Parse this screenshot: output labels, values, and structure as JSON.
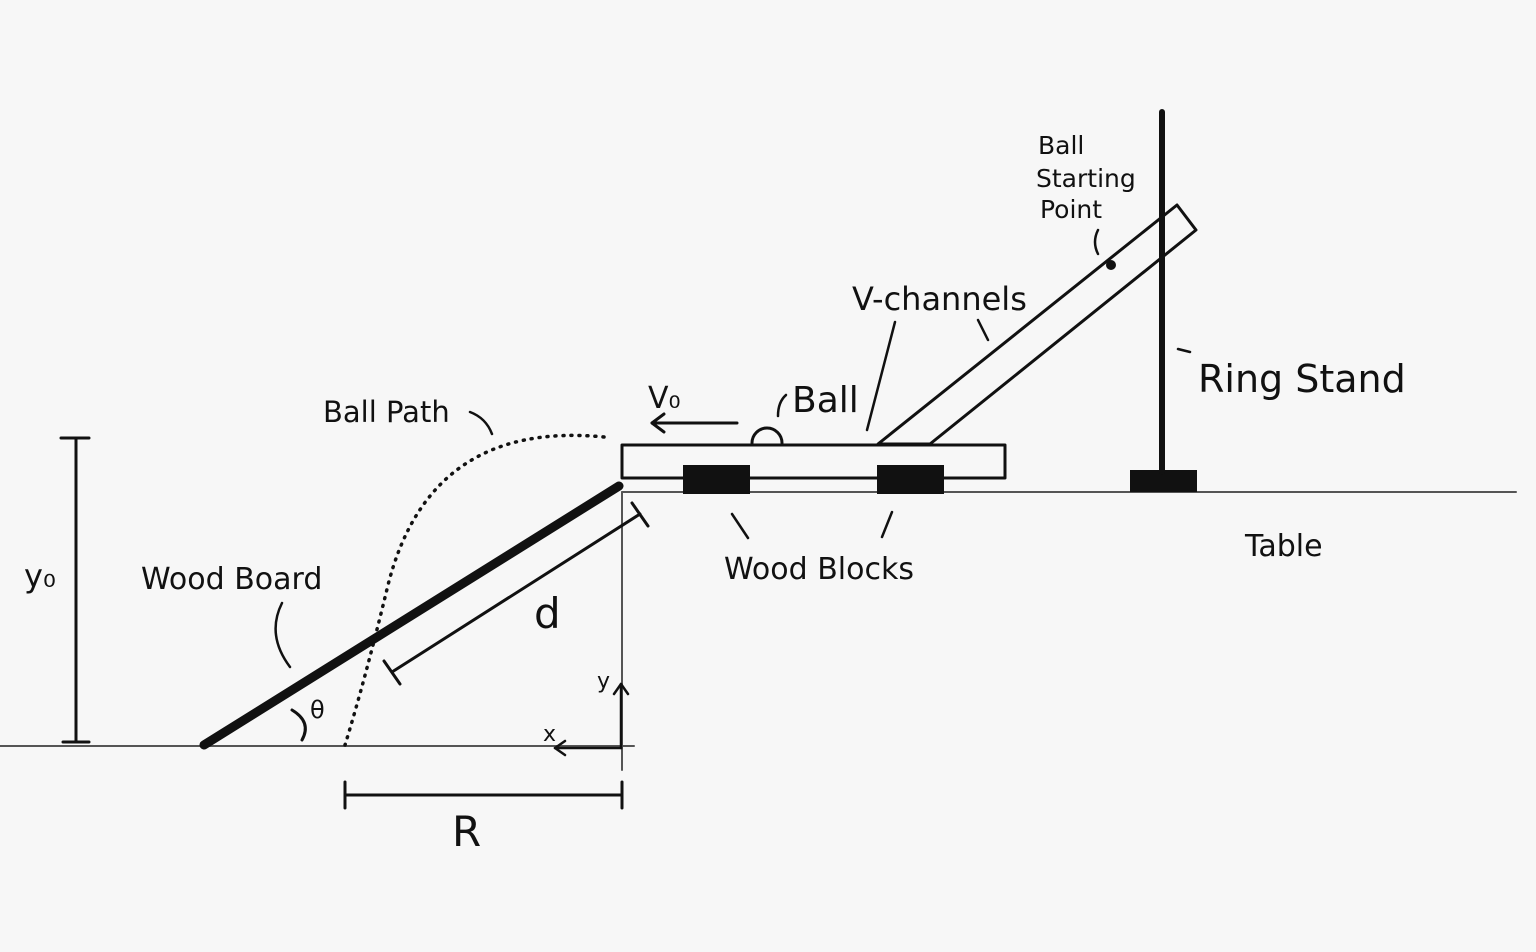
{
  "colors": {
    "background": "#f7f7f7",
    "ink": "#111111",
    "ground_line": "#555555"
  },
  "labels": {
    "ball_starting_point": [
      "Ball",
      "Starting",
      "Point"
    ],
    "v_channels": "V-channels",
    "ring_stand": "Ring Stand",
    "initial_velocity": "V₀",
    "ball": "Ball",
    "ball_path": "Ball Path",
    "table": "Table",
    "wood_blocks": "Wood Blocks",
    "wood_board": "Wood Board",
    "height": "y₀",
    "distance_d": "d",
    "angle": "θ",
    "axis_y": "y",
    "axis_x": "x",
    "range": "R"
  }
}
